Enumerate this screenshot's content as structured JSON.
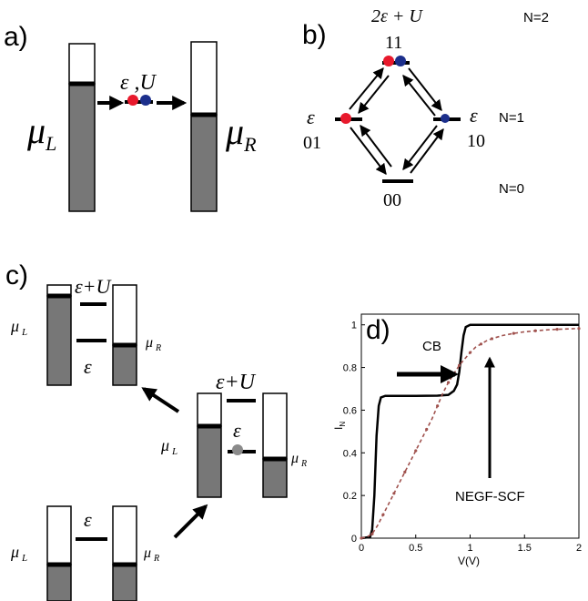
{
  "panels": {
    "a": {
      "label": "a)",
      "level_label": "ε ,U",
      "mu_left": "μ",
      "mu_left_sub": "L",
      "mu_right": "μ",
      "mu_right_sub": "R"
    },
    "b": {
      "label": "b)",
      "energy_top": "2ε + U",
      "state_top": "11",
      "energy_left": "ε",
      "state_left": "01",
      "energy_right": "ε",
      "state_right": "10",
      "state_bottom": "00",
      "n2": "N=2",
      "n1": "N=1",
      "n0": "N=0"
    },
    "c": {
      "label": "c)",
      "eps_plus_u": "ε+U",
      "eps": "ε",
      "mu_l": "μ",
      "mu_l_sub": "L",
      "mu_r": "μ",
      "mu_r_sub": "R"
    },
    "d": {
      "label": "d)",
      "cb_label": "CB",
      "negf_label": "NEGF-SCF"
    }
  },
  "colors": {
    "electron_red": "#e8192c",
    "electron_blue": "#1c2f8c",
    "electron_grey": "#8a8a8a",
    "band_fill": "#777777",
    "negf_curve": "#a0524e"
  },
  "chart_data": {
    "type": "line",
    "xlabel": "V(V)",
    "ylabel": "I",
    "ylabel_sub": "N",
    "xlim": [
      0,
      2
    ],
    "ylim": [
      0,
      1.05
    ],
    "xticks": [
      "0",
      "0.5",
      "1",
      "1.5",
      "2"
    ],
    "yticks": [
      "0",
      "0.2",
      "0.4",
      "0.6",
      "0.8",
      "1"
    ],
    "series": [
      {
        "name": "CB",
        "x": [
          0,
          0.08,
          0.1,
          0.12,
          0.14,
          0.16,
          0.18,
          0.22,
          0.3,
          0.5,
          0.7,
          0.8,
          0.85,
          0.88,
          0.9,
          0.92,
          0.94,
          0.96,
          1.0,
          1.2,
          1.5,
          2.0
        ],
        "y": [
          0,
          0.005,
          0.04,
          0.2,
          0.48,
          0.62,
          0.66,
          0.667,
          0.667,
          0.667,
          0.668,
          0.672,
          0.69,
          0.72,
          0.78,
          0.87,
          0.95,
          0.99,
          1.0,
          1.0,
          1.0,
          1.0
        ]
      },
      {
        "name": "NEGF-SCF",
        "x": [
          0,
          0.05,
          0.1,
          0.15,
          0.2,
          0.25,
          0.3,
          0.35,
          0.4,
          0.45,
          0.5,
          0.55,
          0.6,
          0.65,
          0.7,
          0.75,
          0.8,
          0.85,
          0.9,
          0.95,
          1.0,
          1.05,
          1.1,
          1.15,
          1.2,
          1.3,
          1.4,
          1.5,
          1.6,
          1.7,
          1.8,
          1.9,
          2.0
        ],
        "y": [
          0,
          0.005,
          0.02,
          0.06,
          0.11,
          0.16,
          0.21,
          0.26,
          0.31,
          0.36,
          0.41,
          0.46,
          0.51,
          0.56,
          0.62,
          0.68,
          0.73,
          0.77,
          0.81,
          0.84,
          0.87,
          0.895,
          0.91,
          0.925,
          0.935,
          0.95,
          0.96,
          0.967,
          0.972,
          0.976,
          0.979,
          0.981,
          0.983
        ]
      }
    ],
    "grid": false
  }
}
